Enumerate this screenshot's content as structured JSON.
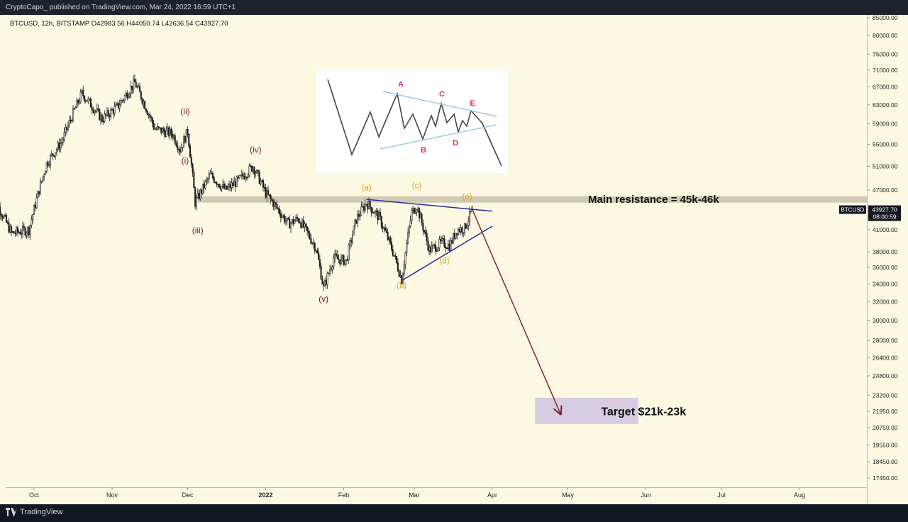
{
  "header": {
    "publish_line": "CryptoCapo_ published on TradingView.com, Mar 24, 2022 16:59 UTC+1"
  },
  "symbol_line": "BTCUSD, 12h, BITSTAMP  O42983.56  H44050.74  L42636.54  C43927.70",
  "footer": {
    "brand": "TradingView"
  },
  "colors": {
    "background": "#fdf8e2",
    "candle": "#1a1a1a",
    "wave_count": "#7b1a1a",
    "abcde": "#e0a020",
    "triangle": "#2a2aa0",
    "arrow": "#7b1a2a",
    "resistance_band": "#c9c2aa",
    "target_box": "#d8cde0"
  },
  "chart_data": {
    "type": "candlestick",
    "symbol": "BTCUSD",
    "interval": "12h",
    "exchange": "BITSTAMP",
    "ohlc_last": {
      "open": 42983.56,
      "high": 44050.74,
      "low": 42636.54,
      "close": 43927.7
    },
    "price_axis": {
      "scale": "log",
      "range": [
        17000,
        87000
      ],
      "ticks": [
        "85000.00",
        "80000.00",
        "75000.00",
        "71000.00",
        "67000.00",
        "63000.00",
        "59000.00",
        "55000.00",
        "51000.00",
        "47000.00",
        "41000.00",
        "38000.00",
        "36000.00",
        "34000.00",
        "32000.00",
        "30000.00",
        "28000.00",
        "26400.00",
        "24800.00",
        "23200.00",
        "21950.00",
        "20750.00",
        "19550.00",
        "18450.00",
        "17450.00"
      ]
    },
    "time_axis": {
      "labels": [
        {
          "label": "Oct",
          "date": "2021-10-01",
          "bold": false
        },
        {
          "label": "Nov",
          "date": "2021-11-01",
          "bold": false
        },
        {
          "label": "Dec",
          "date": "2021-12-01",
          "bold": false
        },
        {
          "label": "2022",
          "date": "2022-01-01",
          "bold": true
        },
        {
          "label": "Feb",
          "date": "2022-02-01",
          "bold": false
        },
        {
          "label": "Mar",
          "date": "2022-03-01",
          "bold": false
        },
        {
          "label": "Apr",
          "date": "2022-04-01",
          "bold": false
        },
        {
          "label": "May",
          "date": "2022-05-01",
          "bold": false
        },
        {
          "label": "Jun",
          "date": "2022-06-01",
          "bold": false
        },
        {
          "label": "Jul",
          "date": "2022-07-01",
          "bold": false
        },
        {
          "label": "Aug",
          "date": "2022-08-01",
          "bold": false
        }
      ]
    },
    "price_path_anchors": [
      {
        "date": "2021-09-14",
        "price": 46500
      },
      {
        "date": "2021-09-22",
        "price": 40500
      },
      {
        "date": "2021-09-29",
        "price": 41000
      },
      {
        "date": "2021-10-06",
        "price": 51500
      },
      {
        "date": "2021-10-12",
        "price": 55500
      },
      {
        "date": "2021-10-20",
        "price": 65500
      },
      {
        "date": "2021-10-28",
        "price": 60000
      },
      {
        "date": "2021-11-03",
        "price": 62500
      },
      {
        "date": "2021-11-10",
        "price": 68000
      },
      {
        "date": "2021-11-18",
        "price": 58000
      },
      {
        "date": "2021-11-25",
        "price": 57000
      },
      {
        "date": "2021-11-28",
        "price": 54000
      },
      {
        "date": "2021-12-01",
        "price": 57500
      },
      {
        "date": "2021-12-04",
        "price": 45000
      },
      {
        "date": "2021-12-10",
        "price": 49500
      },
      {
        "date": "2021-12-16",
        "price": 47000
      },
      {
        "date": "2021-12-21",
        "price": 48500
      },
      {
        "date": "2021-12-27",
        "price": 51000
      },
      {
        "date": "2022-01-01",
        "price": 46500
      },
      {
        "date": "2022-01-10",
        "price": 41800
      },
      {
        "date": "2022-01-14",
        "price": 42600
      },
      {
        "date": "2022-01-21",
        "price": 38500
      },
      {
        "date": "2022-01-24",
        "price": 33500
      },
      {
        "date": "2022-01-28",
        "price": 37200
      },
      {
        "date": "2022-02-02",
        "price": 36800
      },
      {
        "date": "2022-02-06",
        "price": 42500
      },
      {
        "date": "2022-02-10",
        "price": 45000
      },
      {
        "date": "2022-02-15",
        "price": 42800
      },
      {
        "date": "2022-02-20",
        "price": 38500
      },
      {
        "date": "2022-02-24",
        "price": 34500
      },
      {
        "date": "2022-02-28",
        "price": 43500
      },
      {
        "date": "2022-03-02",
        "price": 44500
      },
      {
        "date": "2022-03-07",
        "price": 38200
      },
      {
        "date": "2022-03-12",
        "price": 39200
      },
      {
        "date": "2022-03-15",
        "price": 38800
      },
      {
        "date": "2022-03-18",
        "price": 41000
      },
      {
        "date": "2022-03-21",
        "price": 41200
      },
      {
        "date": "2022-03-24",
        "price": 43900
      }
    ],
    "resistance_band": {
      "label": "Main resistance = 45k-46k",
      "low": 45000,
      "high": 46000
    },
    "current_price": {
      "symbol": "BTCUSD",
      "price": "43927.70",
      "countdown": "08:00:59"
    },
    "elliott_waves": [
      {
        "label": "(i)",
        "date": "2021-11-30",
        "price": 51500
      },
      {
        "label": "(ii)",
        "date": "2021-11-30",
        "price": 61000
      },
      {
        "label": "(iii)",
        "date": "2021-12-05",
        "price": 40500
      },
      {
        "label": "(iv)",
        "date": "2021-12-28",
        "price": 53500
      },
      {
        "label": "(v)",
        "date": "2022-01-24",
        "price": 32000
      }
    ],
    "triangle_labels": [
      {
        "label": "(a)",
        "date": "2022-02-10",
        "price": 46900
      },
      {
        "label": "(b)",
        "date": "2022-02-24",
        "price": 33500
      },
      {
        "label": "(c)",
        "date": "2022-03-02",
        "price": 47300
      },
      {
        "label": "(d)",
        "date": "2022-03-13",
        "price": 36500
      },
      {
        "label": "(e)",
        "date": "2022-03-22",
        "price": 45500
      }
    ],
    "triangle_lines": [
      {
        "from": {
          "date": "2022-02-10",
          "price": 45500
        },
        "to": {
          "date": "2022-04-01",
          "price": 43700
        }
      },
      {
        "from": {
          "date": "2022-02-24",
          "price": 34400
        },
        "to": {
          "date": "2022-04-01",
          "price": 41500
        }
      }
    ],
    "projection_arrow": {
      "from": {
        "date": "2022-03-24",
        "price": 44000
      },
      "to": {
        "date": "2022-04-28",
        "price": 21800
      }
    },
    "target_box": {
      "label": "Target $21k-23k",
      "low": 21000,
      "high": 23000,
      "from": "2022-04-18",
      "to": "2022-05-29"
    },
    "inset_diagram": {
      "labels": [
        "A",
        "B",
        "C",
        "D",
        "E"
      ]
    }
  }
}
